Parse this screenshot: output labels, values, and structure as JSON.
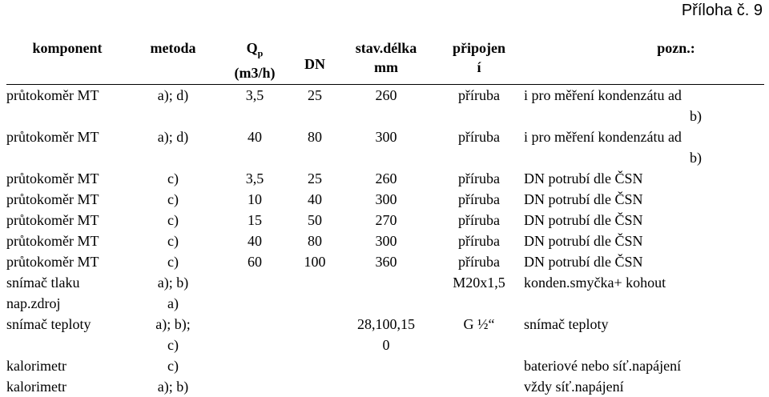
{
  "appendix_label": "Příloha č. 9",
  "headers": {
    "komponent": "komponent",
    "metoda": "metoda",
    "qp_main": "Q",
    "qp_sub": "p",
    "qp_unit": "(m3/h)",
    "dn": "DN",
    "stav_line1": "stav.délka",
    "stav_line2": "mm",
    "pripojeni_line1": "připojen",
    "pripojeni_line2": "í",
    "pozn": "pozn.:"
  },
  "rows": [
    {
      "komponent": "průtokoměr MT",
      "metoda": "a); d)",
      "qp": "3,5",
      "dn": "25",
      "delka": "260",
      "pripojeni": "příruba",
      "pozn": "i pro měření kondenzátu ad",
      "pozn2": "b)"
    },
    {
      "komponent": "průtokoměr MT",
      "metoda": "a); d)",
      "qp": "40",
      "dn": "80",
      "delka": "300",
      "pripojeni": "příruba",
      "pozn": "i pro měření kondenzátu ad",
      "pozn2": "b)"
    },
    {
      "komponent": "průtokoměr MT",
      "metoda": "c)",
      "qp": "3,5",
      "dn": "25",
      "delka": "260",
      "pripojeni": "příruba",
      "pozn": "DN potrubí dle ČSN"
    },
    {
      "komponent": "průtokoměr MT",
      "metoda": "c)",
      "qp": "10",
      "dn": "40",
      "delka": "300",
      "pripojeni": "příruba",
      "pozn": "DN potrubí dle ČSN"
    },
    {
      "komponent": "průtokoměr MT",
      "metoda": "c)",
      "qp": "15",
      "dn": "50",
      "delka": "270",
      "pripojeni": "příruba",
      "pozn": "DN potrubí dle ČSN"
    },
    {
      "komponent": "průtokoměr MT",
      "metoda": "c)",
      "qp": "40",
      "dn": "80",
      "delka": "300",
      "pripojeni": "příruba",
      "pozn": "DN potrubí dle ČSN"
    },
    {
      "komponent": "průtokoměr MT",
      "metoda": "c)",
      "qp": "60",
      "dn": "100",
      "delka": "360",
      "pripojeni": "příruba",
      "pozn": "DN potrubí dle ČSN"
    },
    {
      "komponent": "snímač tlaku",
      "metoda": "a); b)",
      "qp": "",
      "dn": "",
      "delka": "",
      "pripojeni": "M20x1,5",
      "pozn": "konden.smyčka+ kohout"
    },
    {
      "komponent": "nap.zdroj",
      "metoda": "a)",
      "qp": "",
      "dn": "",
      "delka": "",
      "pripojeni": "",
      "pozn": ""
    },
    {
      "komponent": "snímač teploty",
      "metoda": "a); b);",
      "metoda2": "c)",
      "qp": "",
      "dn": "",
      "delka": "28,100,15",
      "delka2": "0",
      "pripojeni": "G ½“",
      "pozn": "snímač teploty"
    },
    {
      "komponent": "kalorimetr",
      "metoda": "c)",
      "qp": "",
      "dn": "",
      "delka": "",
      "pripojeni": "",
      "pozn": "bateriové nebo síť.napájení"
    },
    {
      "komponent": "kalorimetr",
      "metoda": "a); b)",
      "qp": "",
      "dn": "",
      "delka": "",
      "pripojeni": "",
      "pozn": "vždy síť.napájení"
    }
  ]
}
